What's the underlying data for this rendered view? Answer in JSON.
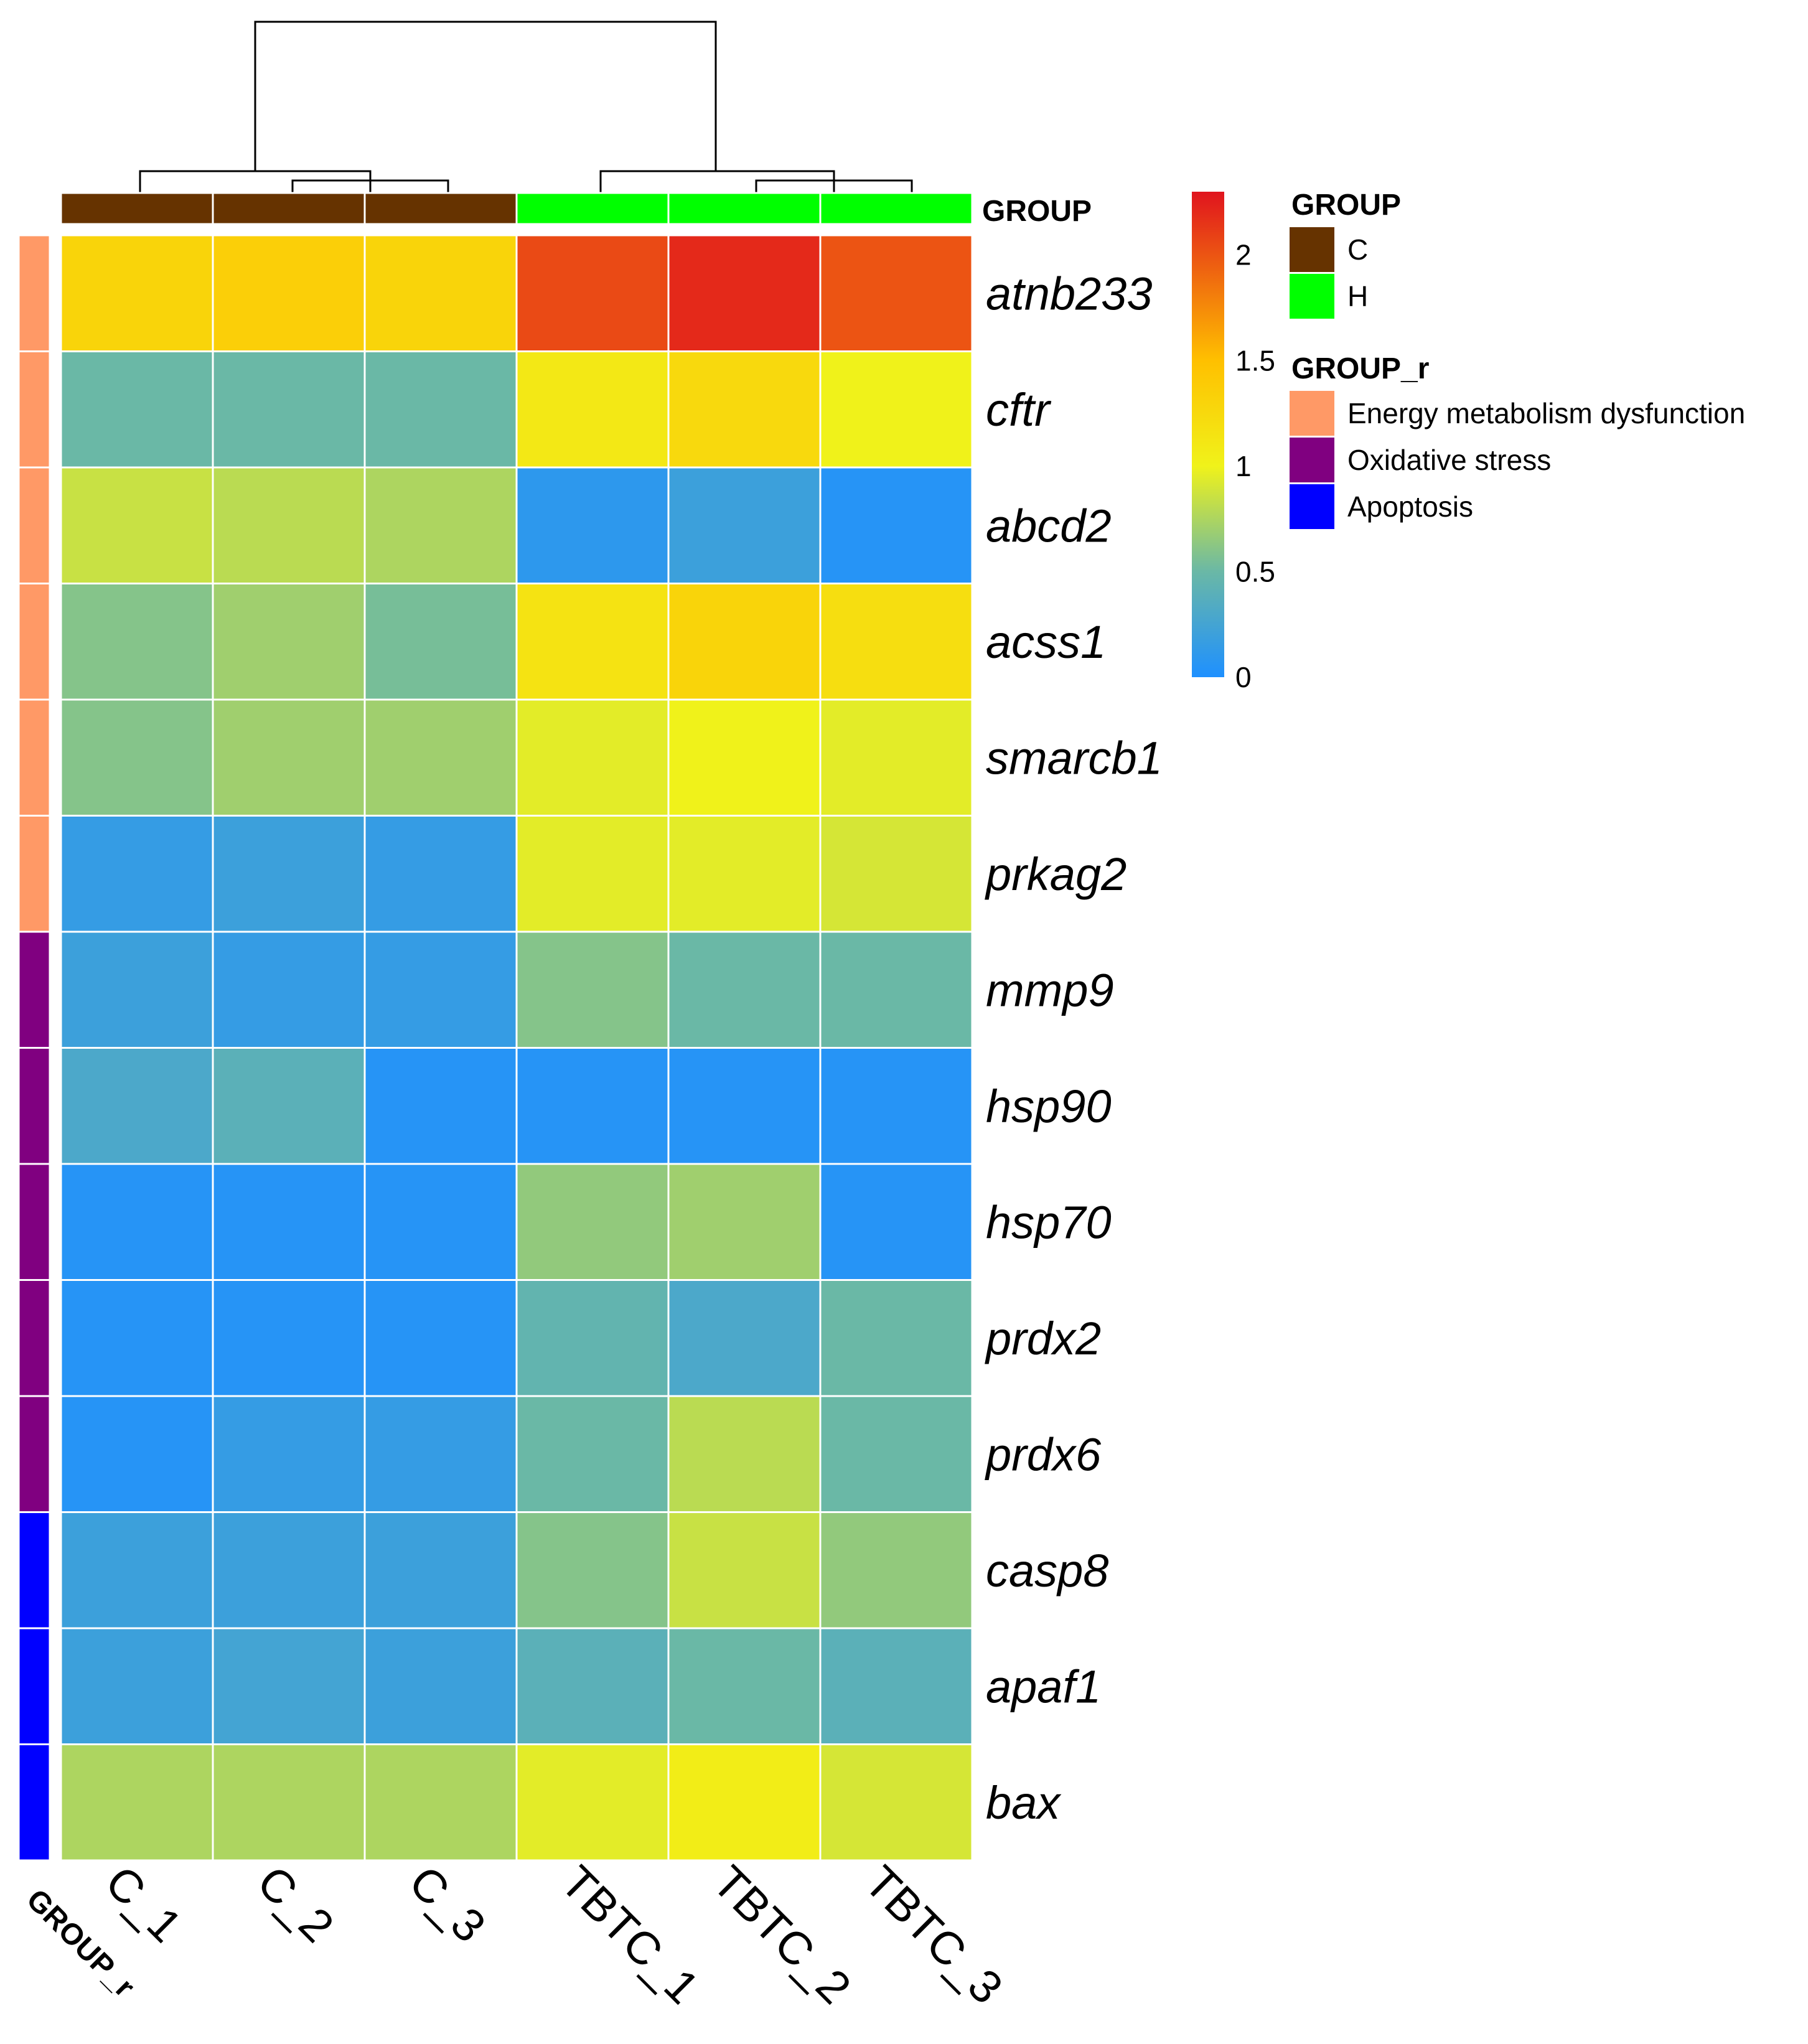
{
  "chart_data": {
    "type": "heatmap",
    "columns": [
      "C_1",
      "C_2",
      "C_3",
      "TBTC_1",
      "TBTC_2",
      "TBTC_3"
    ],
    "column_groups": [
      "C",
      "C",
      "C",
      "H",
      "H",
      "H"
    ],
    "rows": [
      "atnb233",
      "cftr",
      "abcd2",
      "acss1",
      "smarcb1",
      "prkag2",
      "mmp9",
      "hsp90",
      "hsp70",
      "prdx2",
      "prdx6",
      "casp8",
      "apaf1",
      "bax"
    ],
    "row_groups": [
      "Energy metabolism dysfunction",
      "Energy metabolism dysfunction",
      "Energy metabolism dysfunction",
      "Energy metabolism dysfunction",
      "Energy metabolism dysfunction",
      "Energy metabolism dysfunction",
      "Oxidative stress",
      "Oxidative stress",
      "Oxidative stress",
      "Oxidative stress",
      "Oxidative stress",
      "Apoptosis",
      "Apoptosis",
      "Apoptosis"
    ],
    "values": [
      [
        1.3,
        1.35,
        1.3,
        2.05,
        2.2,
        2.0
      ],
      [
        0.5,
        0.5,
        0.5,
        1.1,
        1.25,
        1.0
      ],
      [
        0.85,
        0.8,
        0.75,
        0.1,
        0.2,
        0.05
      ],
      [
        0.6,
        0.7,
        0.55,
        1.15,
        1.3,
        1.2
      ],
      [
        0.6,
        0.7,
        0.7,
        0.95,
        1.0,
        0.95
      ],
      [
        0.15,
        0.2,
        0.15,
        0.95,
        0.95,
        0.9
      ],
      [
        0.2,
        0.15,
        0.15,
        0.6,
        0.5,
        0.5
      ],
      [
        0.3,
        0.4,
        0.05,
        0.05,
        0.05,
        0.05
      ],
      [
        0.05,
        0.05,
        0.05,
        0.65,
        0.7,
        0.05
      ],
      [
        0.05,
        0.05,
        0.05,
        0.45,
        0.3,
        0.5
      ],
      [
        0.05,
        0.15,
        0.15,
        0.5,
        0.8,
        0.5
      ],
      [
        0.2,
        0.2,
        0.2,
        0.6,
        0.85,
        0.65
      ],
      [
        0.2,
        0.25,
        0.2,
        0.4,
        0.5,
        0.4
      ],
      [
        0.75,
        0.75,
        0.75,
        0.95,
        1.05,
        0.9
      ]
    ],
    "color_scale": {
      "min": 0,
      "max": 2.3,
      "stops": [
        {
          "value": 0,
          "color": "#1e90ff"
        },
        {
          "value": 0.5,
          "color": "#6ab8a6"
        },
        {
          "value": 1.0,
          "color": "#f0f21a"
        },
        {
          "value": 1.5,
          "color": "#ffc000"
        },
        {
          "value": 2.3,
          "color": "#e0141e"
        }
      ],
      "ticks": [
        "0",
        "0.5",
        "1",
        "1.5",
        "2"
      ]
    },
    "annotation_column_label": "GROUP",
    "annotation_row_label": "GROUP_r"
  },
  "legend": {
    "group_title": "GROUP",
    "group_items": [
      {
        "label": "C",
        "color": "#663300"
      },
      {
        "label": "H",
        "color": "#00ff00"
      }
    ],
    "group_r_title": "GROUP_r",
    "group_r_items": [
      {
        "label": "Energy metabolism dysfunction",
        "color": "#ff9966"
      },
      {
        "label": "Oxidative stress",
        "color": "#800080"
      },
      {
        "label": "Apoptosis",
        "color": "#0000ff"
      }
    ]
  }
}
